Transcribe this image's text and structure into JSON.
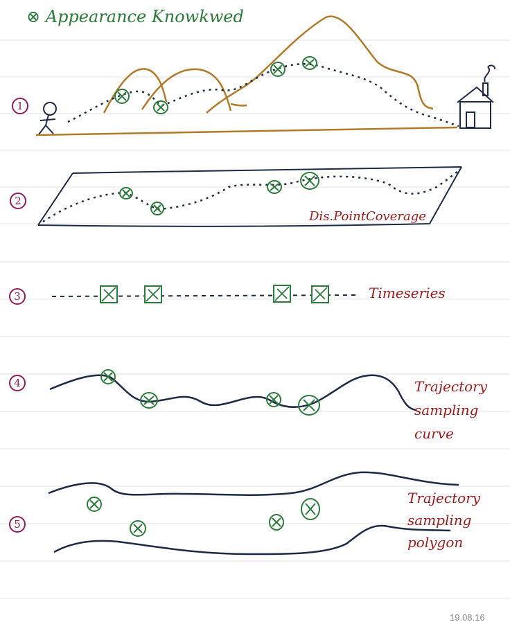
{
  "header": {
    "title": "⊗ Appearance Knowkwed"
  },
  "sections": [
    {
      "number": "1",
      "label": ""
    },
    {
      "number": "2",
      "label": "Dis.PointCoverage"
    },
    {
      "number": "3",
      "label": "Timeseries"
    },
    {
      "number": "4",
      "label": "Trajectory sampling curve"
    },
    {
      "number": "5",
      "label": "Trajectory sampling polygon"
    }
  ],
  "footer": {
    "date": "19.08.16"
  },
  "colors": {
    "ink_dark": "#1c2a44",
    "ink_brown": "#b07a2a",
    "ink_green": "#2d7a3c",
    "ink_red": "#9b1c1c",
    "ink_purple": "#8b1d5a",
    "rule_line": "#e3e3e3"
  }
}
